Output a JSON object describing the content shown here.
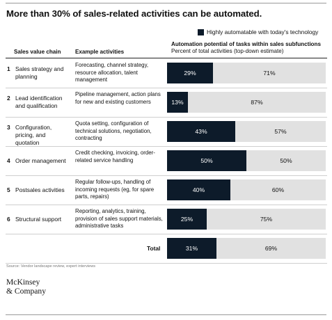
{
  "title": "More than 30% of sales-related activities can be automated.",
  "legend_label": "Highly automatable with today's technology",
  "colors": {
    "automated": "#0d1b2a",
    "remaining": "#e1e1e1"
  },
  "headers": {
    "col1": "Sales value chain",
    "col2": "Example activities",
    "col3_title": "Automation potential of tasks within sales subfunctions",
    "col3_sub": "Percent of total activities (top-down estimate)"
  },
  "rows": [
    {
      "num": "1",
      "name": "Sales strategy and planning",
      "activities": "Forecasting, channel strategy, resource allocation, talent management",
      "auto_label": "29%",
      "rest_label": "71%"
    },
    {
      "num": "2",
      "name": "Lead identification and qualification",
      "activities": "Pipeline management, action plans for new and existing customers",
      "auto_label": "13%",
      "rest_label": "87%"
    },
    {
      "num": "3",
      "name": "Configuration, pricing, and quotation",
      "activities": "Quota setting, configuration of technical solutions, negotiation, contracting",
      "auto_label": "43%",
      "rest_label": "57%"
    },
    {
      "num": "4",
      "name": "Order management",
      "activities": "Credit checking, invoicing, order-related service handling",
      "auto_label": "50%",
      "rest_label": "50%"
    },
    {
      "num": "5",
      "name": "Postsales activities",
      "activities": "Regular follow-ups, handling of incoming requests (eg, for spare parts, repairs)",
      "auto_label": "40%",
      "rest_label": "60%"
    },
    {
      "num": "6",
      "name": "Structural support",
      "activities": "Reporting, analytics, training, provision of sales support materials, administrative tasks",
      "auto_label": "25%",
      "rest_label": "75%"
    }
  ],
  "total": {
    "label": "Total",
    "auto_label": "31%",
    "rest_label": "69%"
  },
  "chart_data": {
    "type": "bar",
    "orientation": "horizontal",
    "stacked": true,
    "categories": [
      "Sales strategy and planning",
      "Lead identification and qualification",
      "Configuration, pricing, and quotation",
      "Order management",
      "Postsales activities",
      "Structural support",
      "Total"
    ],
    "series": [
      {
        "name": "Highly automatable with today's technology",
        "values": [
          29,
          13,
          43,
          50,
          40,
          25,
          31
        ]
      },
      {
        "values": [
          71,
          87,
          57,
          50,
          60,
          75,
          69
        ]
      }
    ],
    "xlim": [
      0,
      100
    ],
    "title": "More than 30% of sales-related activities can be automated."
  },
  "source": "Source: Vendor landscape review, expert interviews",
  "logo": {
    "line1": "McKinsey",
    "line2": "& Company"
  }
}
